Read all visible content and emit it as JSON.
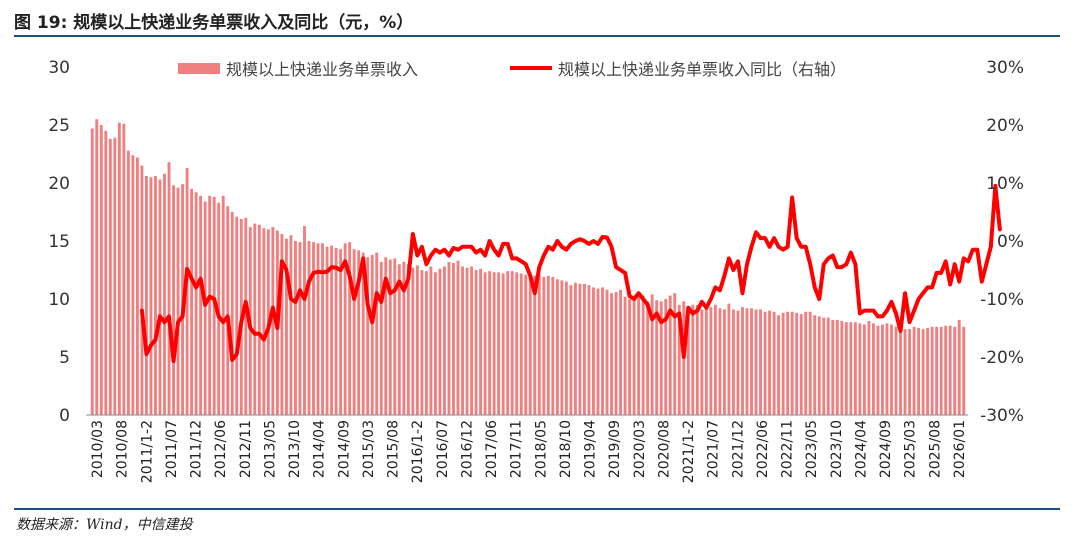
{
  "figure": {
    "title": "图 19: 规模以上快递业务单票收入及同比（元，%）",
    "source": "数据来源：Wind，中信建投"
  },
  "chart_data": {
    "type": "bar+line",
    "x_tick_labels": [
      "2010/03",
      "2010/08",
      "2011/1-2",
      "2011/07",
      "2011/12",
      "2012/06",
      "2012/11",
      "2013/05",
      "2013/10",
      "2014/04",
      "2014/09",
      "2015/03",
      "2015/08",
      "2016/1-2",
      "2016/07",
      "2016/12",
      "2017/06",
      "2017/11",
      "2018/05",
      "2018/10",
      "2019/04",
      "2019/09",
      "2020/03",
      "2020/08",
      "2021/1-2",
      "2021/07",
      "2021/12",
      "2022/06",
      "2022/11",
      "2023/05",
      "2023/10",
      "2024/04",
      "2024/09",
      "2025/03",
      "2025/08",
      "2026/01"
    ],
    "y_left": {
      "ticks": [
        "0",
        "5",
        "10",
        "15",
        "20",
        "25",
        "30"
      ],
      "ylim": [
        0,
        30
      ]
    },
    "y_right": {
      "ticks": [
        "-30%",
        "-20%",
        "-10%",
        "0%",
        "10%",
        "20%",
        "30%"
      ],
      "ylim": [
        -30,
        30
      ]
    },
    "legend": [
      "规模以上快递业务单票收入",
      "规模以上快递业务单票收入同比（右轴）"
    ],
    "colors": {
      "bar": "#f08080",
      "line": "#ff0000",
      "rule": "#1f4e79"
    },
    "series": [
      {
        "name": "规模以上快递业务单票收入",
        "type": "bar",
        "axis": "left",
        "values": [
          24.7,
          25.5,
          25.0,
          24.5,
          23.8,
          23.9,
          25.2,
          25.1,
          22.8,
          22.4,
          22.2,
          21.5,
          20.6,
          20.5,
          20.6,
          20.3,
          20.8,
          21.8,
          19.8,
          19.6,
          19.9,
          21.3,
          19.5,
          19.2,
          18.9,
          18.4,
          18.9,
          18.8,
          18.3,
          18.9,
          18.0,
          17.5,
          17.1,
          16.9,
          17.0,
          16.2,
          16.5,
          16.4,
          16.1,
          16.0,
          16.2,
          15.9,
          15.6,
          15.2,
          15.5,
          15.0,
          14.9,
          16.3,
          15.0,
          14.9,
          14.8,
          14.8,
          14.5,
          14.6,
          14.4,
          14.3,
          14.8,
          14.9,
          14.3,
          14.2,
          14.0,
          13.6,
          13.8,
          14.0,
          13.2,
          13.6,
          13.4,
          13.5,
          13.0,
          13.2,
          13.0,
          12.7,
          12.9,
          12.5,
          12.4,
          12.8,
          12.3,
          12.6,
          12.8,
          13.2,
          13.1,
          13.3,
          12.8,
          12.7,
          12.8,
          12.5,
          12.6,
          12.3,
          12.4,
          12.3,
          12.3,
          12.2,
          12.4,
          12.4,
          12.3,
          12.2,
          12.1,
          12.3,
          12.0,
          12.1,
          11.9,
          12.0,
          11.9,
          11.7,
          11.6,
          11.5,
          11.2,
          11.4,
          11.3,
          11.3,
          11.2,
          11.0,
          10.9,
          11.0,
          10.8,
          10.5,
          10.6,
          10.8,
          10.2,
          10.0,
          10.1,
          10.2,
          10.3,
          9.8,
          10.4,
          9.9,
          9.8,
          10.0,
          10.3,
          10.5,
          9.5,
          9.8,
          9.4,
          9.5,
          9.5,
          9.1,
          9.4,
          9.3,
          9.5,
          9.2,
          9.1,
          9.6,
          9.1,
          9.0,
          9.3,
          9.2,
          9.2,
          9.1,
          9.1,
          8.9,
          9.0,
          8.9,
          8.6,
          8.8,
          8.9,
          8.9,
          8.8,
          8.7,
          8.9,
          8.9,
          8.6,
          8.5,
          8.4,
          8.4,
          8.2,
          8.2,
          8.1,
          8.0,
          8.0,
          8.0,
          7.9,
          7.8,
          8.1,
          7.9,
          7.7,
          7.8,
          7.9,
          7.8,
          7.6,
          7.5,
          7.4,
          7.4,
          7.6,
          7.5,
          7.4,
          7.5,
          7.6,
          7.6,
          7.6,
          7.7,
          7.7,
          7.6,
          8.2,
          7.6
        ]
      },
      {
        "name": "规模以上快递业务单票收入同比（右轴）",
        "type": "line",
        "axis": "right",
        "x_start_index": 11,
        "values": [
          -12,
          -19.5,
          -18,
          -17,
          -13,
          -14,
          -13,
          -20.7,
          -14,
          -13,
          -4.8,
          -6.5,
          -8,
          -6.5,
          -11,
          -9.6,
          -10,
          -13,
          -14,
          -13,
          -20.5,
          -19.5,
          -14,
          -10.5,
          -15,
          -16,
          -16,
          -17,
          -15,
          -11.5,
          -15,
          -3.5,
          -5,
          -10,
          -10.5,
          -8.5,
          -10,
          -7,
          -5.5,
          -5.3,
          -5.4,
          -5.3,
          -4.5,
          -4.6,
          -5,
          -3.5,
          -6,
          -10,
          -7,
          -3,
          -11,
          -14,
          -9,
          -10.5,
          -6.5,
          -9,
          -8.5,
          -7,
          -8.5,
          -6.5,
          1.2,
          -2.5,
          -1,
          -4,
          -2.5,
          -1.5,
          -2,
          -1.5,
          -2.5,
          -1.2,
          -1.5,
          -1,
          -1,
          -1,
          -2,
          -1.5,
          -2.5,
          0,
          -1.5,
          -2.5,
          -0.5,
          -0.5,
          -3,
          -3,
          -3.5,
          -4,
          -6,
          -9,
          -4.5,
          -2.5,
          -1,
          -1.5,
          0,
          -1,
          -1.5,
          -0.5,
          0,
          0.3,
          0,
          -0.5,
          0,
          -0.5,
          0.7,
          0.6,
          -1,
          -4.5,
          -5,
          -5.5,
          -9.5,
          -10,
          -9,
          -10,
          -11,
          -13.5,
          -12.5,
          -14,
          -13.5,
          -12,
          -13,
          -12.5,
          -20,
          -11.5,
          -12.5,
          -12,
          -10.5,
          -11.5,
          -10,
          -8,
          -8.5,
          -6,
          -3,
          -5,
          -3.5,
          -9,
          -4,
          -1,
          1.5,
          0.5,
          0.5,
          -1,
          0.5,
          -1,
          -1.5,
          -1,
          7.5,
          0.5,
          -1,
          -1,
          -4,
          -8,
          -10,
          -4,
          -3,
          -2.5,
          -4.5,
          -4.5,
          -4,
          -2,
          -4,
          -12.5,
          -12,
          -12,
          -12,
          -13,
          -13,
          -12,
          -10.5,
          -12.5,
          -15.5,
          -9,
          -14,
          -12,
          -10,
          -9,
          -8,
          -8,
          -5.5,
          -5.5,
          -3.5,
          -7.5,
          -4,
          -7,
          -3,
          -3.5,
          -1.5,
          -1.5,
          -7,
          -4,
          -1,
          9.5,
          2
        ]
      }
    ]
  }
}
